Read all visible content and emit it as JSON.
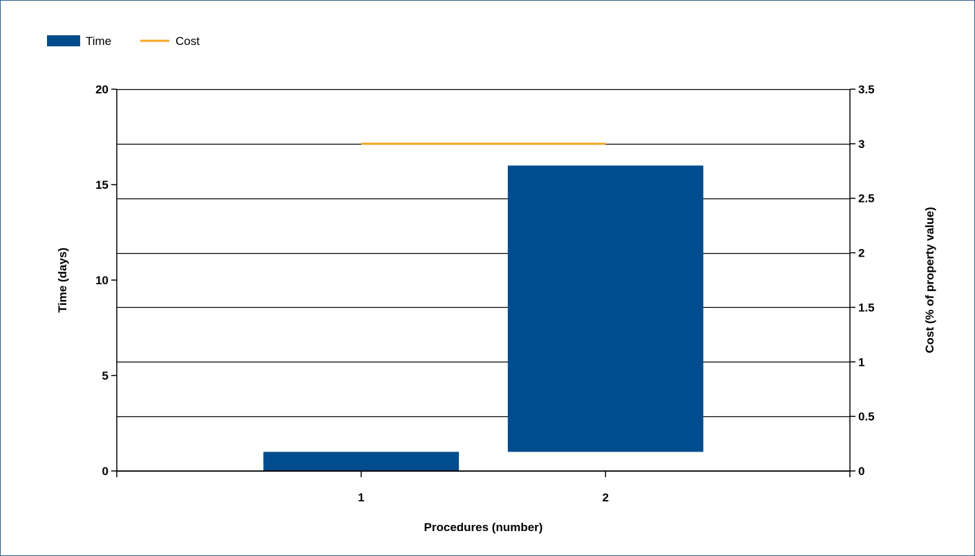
{
  "chart_data": {
    "type": "bar",
    "categories": [
      "1",
      "2"
    ],
    "series": [
      {
        "name": "Time",
        "kind": "floating-bar",
        "axis": "left",
        "color": "#004c8c",
        "values": [
          [
            0,
            1
          ],
          [
            1,
            16
          ]
        ]
      },
      {
        "name": "Cost",
        "kind": "line",
        "axis": "right",
        "color": "#f5a623",
        "values": [
          3,
          3
        ]
      }
    ],
    "xlabel": "Procedures (number)",
    "ylabel": "Time (days)",
    "y2label": "Cost (% of property value)",
    "ylim": [
      0,
      20
    ],
    "y2lim": [
      0,
      3.5
    ],
    "yticks": [
      "0",
      "5",
      "10",
      "15",
      "20"
    ],
    "y2ticks": [
      "0",
      "0.5",
      "1",
      "1.5",
      "2",
      "2.5",
      "3",
      "3.5"
    ],
    "grid": true,
    "legend": "top-left"
  }
}
